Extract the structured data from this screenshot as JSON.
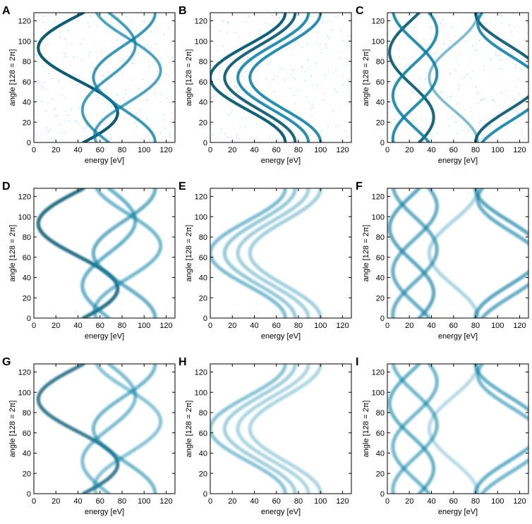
{
  "chart_data": [
    {
      "letter": "A",
      "type": "heatmap",
      "style": "noisy",
      "xlabel": "energy [eV]",
      "ylabel": "angle [128 = 2π]",
      "xlim": [
        0,
        128
      ],
      "ylim": [
        0,
        128
      ],
      "xticks": [
        "0",
        "20",
        "40",
        "60",
        "80",
        "100",
        "120"
      ],
      "yticks": [
        "0",
        "20",
        "40",
        "60",
        "80",
        "100",
        "120"
      ],
      "series": [
        {
          "offset": 40,
          "amplitude": 36,
          "phase_deg": 8,
          "intensity": 0.95
        },
        {
          "offset": 68,
          "amplitude": 24,
          "phase_deg": 180,
          "intensity": 0.65
        },
        {
          "offset": 82,
          "amplitude": 28,
          "phase_deg": 90,
          "intensity": 0.7
        },
        {
          "offset": 85,
          "amplitude": 30,
          "phase_deg": 250,
          "intensity": 0.6
        }
      ]
    },
    {
      "letter": "B",
      "type": "heatmap",
      "style": "noisy",
      "xlabel": "energy [eV]",
      "ylabel": "angle [128 = 2π]",
      "xlim": [
        0,
        128
      ],
      "ylim": [
        0,
        128
      ],
      "xticks": [
        "0",
        "20",
        "40",
        "60",
        "80",
        "100",
        "120"
      ],
      "yticks": [
        "0",
        "20",
        "40",
        "60",
        "80",
        "100",
        "120"
      ],
      "series": [
        {
          "offset": 34,
          "amplitude": 34,
          "phase_deg": 90,
          "intensity": 0.9
        },
        {
          "offset": 45,
          "amplitude": 32,
          "phase_deg": 90,
          "intensity": 0.85
        },
        {
          "offset": 57,
          "amplitude": 32,
          "phase_deg": 90,
          "intensity": 0.8
        },
        {
          "offset": 68,
          "amplitude": 32,
          "phase_deg": 90,
          "intensity": 0.8
        }
      ]
    },
    {
      "letter": "C",
      "type": "heatmap",
      "style": "noisy",
      "xlabel": "energy [eV]",
      "ylabel": "angle [128 = 2π]",
      "xlim": [
        0,
        128
      ],
      "ylim": [
        0,
        128
      ],
      "xticks": [
        "0",
        "20",
        "40",
        "60",
        "80",
        "100",
        "120"
      ],
      "yticks": [
        "0",
        "20",
        "40",
        "60",
        "80",
        "100",
        "120"
      ],
      "series": [
        {
          "offset": 22,
          "amplitude": 20,
          "phase_deg": 20,
          "intensity": 0.85
        },
        {
          "offset": 25,
          "amplitude": 20,
          "phase_deg": 140,
          "intensity": 0.8
        },
        {
          "offset": 25,
          "amplitude": 20,
          "phase_deg": 260,
          "intensity": 0.8
        },
        {
          "offset": 60,
          "amplitude": 22,
          "phase_deg": 90,
          "intensity": 0.4
        },
        {
          "offset": 110,
          "amplitude": 30,
          "phase_deg": 270,
          "intensity": 0.85
        },
        {
          "offset": 112,
          "amplitude": 30,
          "phase_deg": 300,
          "intensity": 0.8
        }
      ]
    },
    {
      "letter": "D",
      "type": "heatmap",
      "style": "smooth",
      "xlabel": "energy [eV]",
      "ylabel": "angle [128 = 2π]",
      "xlim": [
        0,
        128
      ],
      "ylim": [
        0,
        128
      ],
      "xticks": [
        "0",
        "20",
        "40",
        "60",
        "80",
        "100",
        "120"
      ],
      "yticks": [
        "0",
        "20",
        "40",
        "60",
        "80",
        "100",
        "120"
      ],
      "series": [
        {
          "offset": 40,
          "amplitude": 36,
          "phase_deg": 8,
          "intensity": 0.95
        },
        {
          "offset": 68,
          "amplitude": 24,
          "phase_deg": 180,
          "intensity": 0.65
        },
        {
          "offset": 82,
          "amplitude": 28,
          "phase_deg": 90,
          "intensity": 0.7
        },
        {
          "offset": 85,
          "amplitude": 30,
          "phase_deg": 250,
          "intensity": 0.6
        }
      ]
    },
    {
      "letter": "E",
      "type": "heatmap",
      "style": "smooth",
      "xlabel": "energy [eV]",
      "ylabel": "angle [128 = 2π]",
      "xlim": [
        0,
        128
      ],
      "ylim": [
        0,
        128
      ],
      "xticks": [
        "0",
        "20",
        "40",
        "60",
        "80",
        "100",
        "120"
      ],
      "yticks": [
        "0",
        "20",
        "40",
        "60",
        "80",
        "100",
        "120"
      ],
      "series": [
        {
          "offset": 34,
          "amplitude": 34,
          "phase_deg": 90,
          "intensity": 0.55
        },
        {
          "offset": 45,
          "amplitude": 32,
          "phase_deg": 90,
          "intensity": 0.45
        },
        {
          "offset": 57,
          "amplitude": 32,
          "phase_deg": 90,
          "intensity": 0.4
        },
        {
          "offset": 68,
          "amplitude": 32,
          "phase_deg": 90,
          "intensity": 0.4
        }
      ]
    },
    {
      "letter": "F",
      "type": "heatmap",
      "style": "smooth",
      "xlabel": "energy [eV]",
      "ylabel": "angle [128 = 2π]",
      "xlim": [
        0,
        128
      ],
      "ylim": [
        0,
        128
      ],
      "xticks": [
        "0",
        "20",
        "40",
        "60",
        "80",
        "100",
        "120"
      ],
      "yticks": [
        "0",
        "20",
        "40",
        "60",
        "80",
        "100",
        "120"
      ],
      "series": [
        {
          "offset": 22,
          "amplitude": 20,
          "phase_deg": 20,
          "intensity": 0.75
        },
        {
          "offset": 25,
          "amplitude": 20,
          "phase_deg": 140,
          "intensity": 0.7
        },
        {
          "offset": 25,
          "amplitude": 20,
          "phase_deg": 260,
          "intensity": 0.7
        },
        {
          "offset": 60,
          "amplitude": 22,
          "phase_deg": 90,
          "intensity": 0.35
        },
        {
          "offset": 110,
          "amplitude": 30,
          "phase_deg": 270,
          "intensity": 0.75
        },
        {
          "offset": 112,
          "amplitude": 30,
          "phase_deg": 300,
          "intensity": 0.7
        }
      ]
    },
    {
      "letter": "G",
      "type": "heatmap",
      "style": "smooth",
      "xlabel": "energy [eV]",
      "ylabel": "angle [128 = 2π]",
      "xlim": [
        0,
        128
      ],
      "ylim": [
        0,
        128
      ],
      "xticks": [
        "0",
        "20",
        "40",
        "60",
        "80",
        "100",
        "120"
      ],
      "yticks": [
        "0",
        "20",
        "40",
        "60",
        "80",
        "100",
        "120"
      ],
      "series": [
        {
          "offset": 40,
          "amplitude": 36,
          "phase_deg": 8,
          "intensity": 0.85
        },
        {
          "offset": 68,
          "amplitude": 24,
          "phase_deg": 180,
          "intensity": 0.55
        },
        {
          "offset": 82,
          "amplitude": 28,
          "phase_deg": 90,
          "intensity": 0.6
        },
        {
          "offset": 85,
          "amplitude": 30,
          "phase_deg": 250,
          "intensity": 0.5
        }
      ]
    },
    {
      "letter": "H",
      "type": "heatmap",
      "style": "smooth",
      "xlabel": "energy [eV]",
      "ylabel": "angle [128 = 2π]",
      "xlim": [
        0,
        128
      ],
      "ylim": [
        0,
        128
      ],
      "xticks": [
        "0",
        "20",
        "40",
        "60",
        "80",
        "100",
        "120"
      ],
      "yticks": [
        "0",
        "20",
        "40",
        "60",
        "80",
        "100",
        "120"
      ],
      "series": [
        {
          "offset": 34,
          "amplitude": 34,
          "phase_deg": 90,
          "intensity": 0.5
        },
        {
          "offset": 45,
          "amplitude": 32,
          "phase_deg": 90,
          "intensity": 0.4
        },
        {
          "offset": 57,
          "amplitude": 32,
          "phase_deg": 90,
          "intensity": 0.35
        },
        {
          "offset": 68,
          "amplitude": 32,
          "phase_deg": 90,
          "intensity": 0.35
        }
      ]
    },
    {
      "letter": "I",
      "type": "heatmap",
      "style": "smooth",
      "xlabel": "energy [eV]",
      "ylabel": "angle [128 = 2π]",
      "xlim": [
        0,
        128
      ],
      "ylim": [
        0,
        128
      ],
      "xticks": [
        "0",
        "20",
        "40",
        "60",
        "80",
        "100",
        "120"
      ],
      "yticks": [
        "0",
        "20",
        "40",
        "60",
        "80",
        "100",
        "120"
      ],
      "series": [
        {
          "offset": 22,
          "amplitude": 20,
          "phase_deg": 20,
          "intensity": 0.65
        },
        {
          "offset": 25,
          "amplitude": 20,
          "phase_deg": 140,
          "intensity": 0.6
        },
        {
          "offset": 25,
          "amplitude": 20,
          "phase_deg": 260,
          "intensity": 0.6
        },
        {
          "offset": 60,
          "amplitude": 22,
          "phase_deg": 90,
          "intensity": 0.3
        },
        {
          "offset": 110,
          "amplitude": 30,
          "phase_deg": 270,
          "intensity": 0.65
        },
        {
          "offset": 112,
          "amplitude": 30,
          "phase_deg": 300,
          "intensity": 0.6
        }
      ]
    }
  ],
  "colors": {
    "curve": "#0b7ea3",
    "curve_dark": "#06566f",
    "noise": "#8fd1e4",
    "axis": "#000000"
  }
}
